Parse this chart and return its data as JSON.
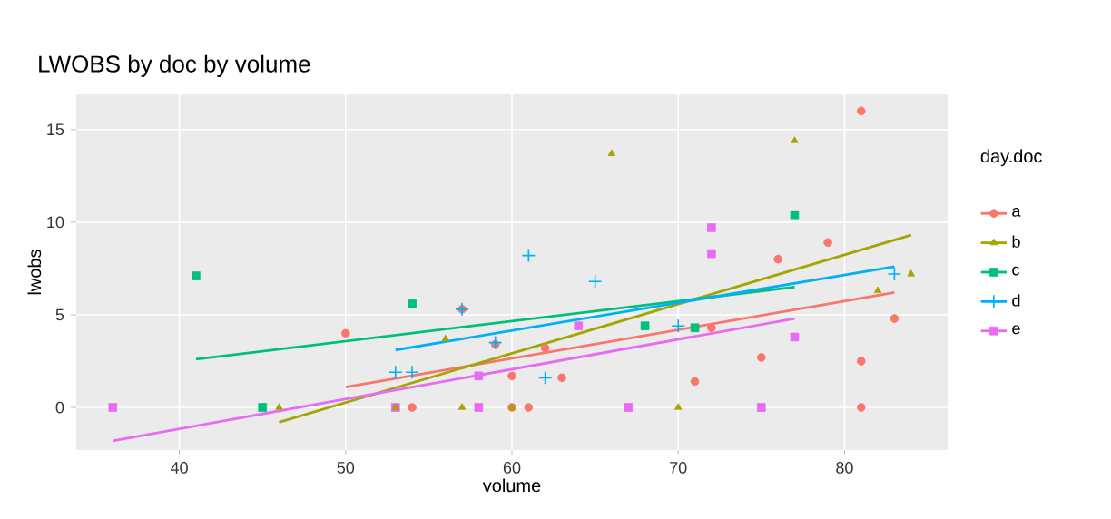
{
  "chart_data": {
    "type": "scatter",
    "title": "LWOBS by doc by volume",
    "xlabel": "volume",
    "ylabel": "lwobs",
    "legend_title": "day.doc",
    "legend": "right",
    "grid": true,
    "xlim": [
      33.8,
      86.2
    ],
    "xticks": [
      40,
      50,
      60,
      70,
      80
    ],
    "ylim": [
      -2.3,
      16.9
    ],
    "yticks": [
      0,
      5,
      10,
      15
    ],
    "series": [
      {
        "name": "a",
        "color": "#f8766d",
        "marker": "circle",
        "x": [
          50,
          54,
          57,
          59,
          60,
          60,
          61,
          62,
          63,
          71,
          72,
          75,
          76,
          79,
          81,
          81,
          81,
          83
        ],
        "values": [
          4.0,
          0,
          5.3,
          3.4,
          1.7,
          0,
          0,
          3.2,
          1.6,
          1.4,
          4.3,
          2.7,
          8.0,
          8.9,
          16.0,
          2.5,
          0,
          4.8
        ]
      },
      {
        "name": "b",
        "color": "#a3a500",
        "marker": "triangle",
        "x": [
          46,
          53,
          56,
          57,
          60,
          66,
          70,
          77,
          82,
          84
        ],
        "values": [
          0,
          0,
          3.7,
          0,
          0,
          13.7,
          0,
          14.4,
          6.3,
          7.2
        ]
      },
      {
        "name": "c",
        "color": "#00bf7d",
        "marker": "square",
        "x": [
          41,
          45,
          54,
          68,
          71,
          77
        ],
        "values": [
          7.1,
          0,
          5.6,
          4.4,
          4.3,
          10.4
        ]
      },
      {
        "name": "d",
        "color": "#00b0f6",
        "marker": "cross",
        "x": [
          53,
          54,
          57,
          59,
          61,
          62,
          65,
          70,
          83
        ],
        "values": [
          1.9,
          1.9,
          5.3,
          3.5,
          8.2,
          1.6,
          6.8,
          4.4,
          7.2
        ]
      },
      {
        "name": "e",
        "color": "#e76bf3",
        "marker": "square",
        "x": [
          36,
          53,
          58,
          58,
          64,
          67,
          72,
          72,
          75,
          77
        ],
        "values": [
          0,
          0,
          1.7,
          0,
          4.4,
          0,
          9.7,
          8.3,
          0,
          3.8
        ]
      },
      {
        "type": "line",
        "color": "#f8766d",
        "x": [
          50,
          83
        ],
        "values": [
          1.1,
          6.2
        ]
      },
      {
        "type": "line",
        "color": "#a3a500",
        "x": [
          46,
          84
        ],
        "values": [
          -0.8,
          9.3
        ]
      },
      {
        "type": "line",
        "color": "#00bf7d",
        "x": [
          41,
          77
        ],
        "values": [
          2.6,
          6.5
        ]
      },
      {
        "type": "line",
        "color": "#00b0f6",
        "x": [
          53,
          83
        ],
        "values": [
          3.1,
          7.6
        ]
      },
      {
        "type": "line",
        "color": "#e76bf3",
        "x": [
          36,
          77
        ],
        "values": [
          -1.8,
          4.8
        ]
      }
    ]
  }
}
